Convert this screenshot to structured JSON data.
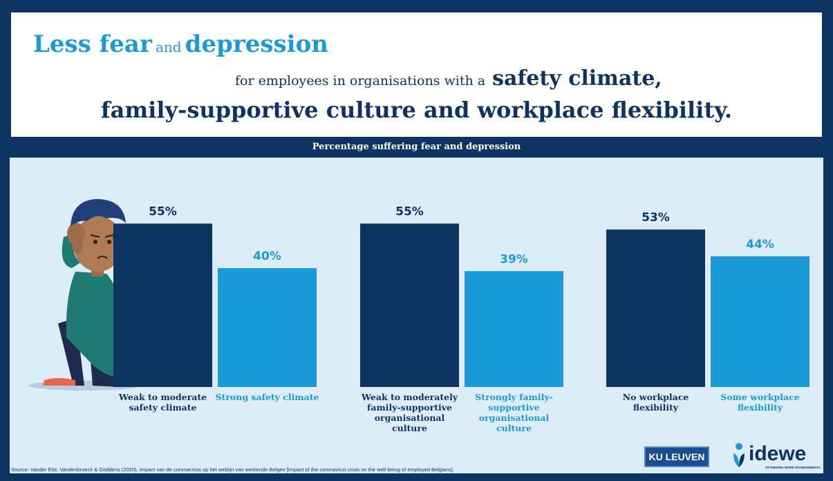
{
  "header": {
    "title_part1": "Less fear",
    "title_part2": "and",
    "title_part3": "depression",
    "line2_normal": "for employees in organisations with a",
    "line2_bold": "safety climate,",
    "line3": "family-supportive culture and workplace flexibility."
  },
  "colors": {
    "dark_navy": "#0d3461",
    "light_blue": "#1a9ad6",
    "panel_bg": "#ddedf7"
  },
  "chart_data": {
    "type": "bar",
    "title": "Percentage suffering fear and depression",
    "ylim": [
      0,
      60
    ],
    "groups": [
      {
        "bars": [
          {
            "label": "Weak to moderate safety climate",
            "value": 55,
            "value_label": "55%",
            "color": "#0d3461"
          },
          {
            "label": "Strong safety climate",
            "value": 40,
            "value_label": "40%",
            "color": "#1a9ad6"
          }
        ]
      },
      {
        "bars": [
          {
            "label": "Weak to moderately family-supportive organisational culture",
            "value": 55,
            "value_label": "55%",
            "color": "#0d3461"
          },
          {
            "label": "Strongly family-supportive organisational culture",
            "value": 39,
            "value_label": "39%",
            "color": "#1a9ad6"
          }
        ]
      },
      {
        "bars": [
          {
            "label": "No workplace flexibility",
            "value": 53,
            "value_label": "53%",
            "color": "#0d3461"
          },
          {
            "label": "Some workplace flexibility",
            "value": 44,
            "value_label": "44%",
            "color": "#1a9ad6"
          }
        ]
      }
    ]
  },
  "footer": {
    "source": "Source: Vander Elst, Vandenbroeck & Godderis (2020). Impact van de coronacrisis op het welzijn van werkende Belgen [Impact of the coronavirus crisis on the well-being of employed Belgians].",
    "logo_ku": "KU LEUVEN",
    "logo_idewe": "idewe",
    "logo_idewe_tagline": "OPTIMISING WORK ENVIRONMENTS"
  }
}
